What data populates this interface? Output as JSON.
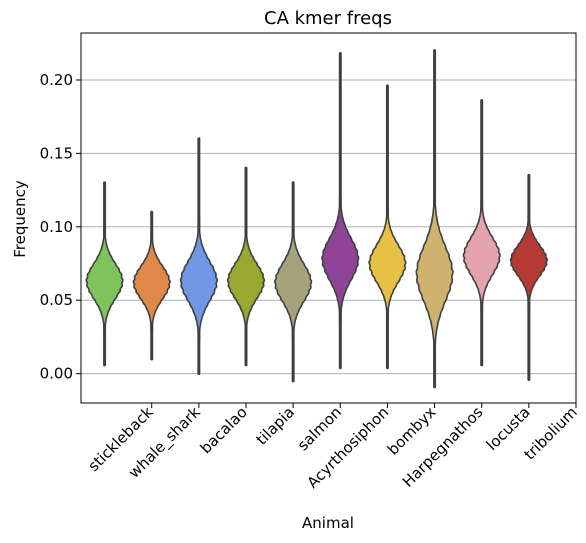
{
  "chart_data": {
    "type": "violin",
    "title": "CA kmer freqs",
    "xlabel": "Animal",
    "ylabel": "Frequency",
    "ylim": [
      -0.02,
      0.232
    ],
    "yticks": [
      "0.00",
      "0.05",
      "0.10",
      "0.15",
      "0.20"
    ],
    "ytick_values": [
      0.0,
      0.05,
      0.1,
      0.15,
      0.2
    ],
    "grid": "horizontal",
    "categories": [
      "stickleback",
      "whale_shark",
      "bacalao",
      "tilapia",
      "salmon",
      "Acyrthosiphon",
      "bombyx",
      "Harpegnathos",
      "locusta",
      "tribolium"
    ],
    "series": [
      {
        "name": "stickleback",
        "color": "#7ec45a",
        "min": 0.006,
        "max": 0.13,
        "median": 0.063,
        "q1": 0.055,
        "q3": 0.071
      },
      {
        "name": "whale_shark",
        "color": "#e0884a",
        "min": 0.01,
        "max": 0.11,
        "median": 0.062,
        "q1": 0.054,
        "q3": 0.069
      },
      {
        "name": "bacalao",
        "color": "#7198e6",
        "min": 0.0,
        "max": 0.16,
        "median": 0.063,
        "q1": 0.054,
        "q3": 0.072
      },
      {
        "name": "tilapia",
        "color": "#99a82e",
        "min": 0.006,
        "max": 0.14,
        "median": 0.063,
        "q1": 0.055,
        "q3": 0.071
      },
      {
        "name": "salmon",
        "color": "#a5a27c",
        "min": -0.005,
        "max": 0.13,
        "median": 0.062,
        "q1": 0.053,
        "q3": 0.07
      },
      {
        "name": "Acyrthosiphon",
        "color": "#8f4397",
        "min": 0.004,
        "max": 0.218,
        "median": 0.078,
        "q1": 0.068,
        "q3": 0.087
      },
      {
        "name": "bombyx",
        "color": "#e6c143",
        "min": 0.004,
        "max": 0.196,
        "median": 0.075,
        "q1": 0.066,
        "q3": 0.083
      },
      {
        "name": "Harpegnathos",
        "color": "#cfb26d",
        "min": -0.009,
        "max": 0.22,
        "median": 0.068,
        "q1": 0.055,
        "q3": 0.08
      },
      {
        "name": "locusta",
        "color": "#e5a3af",
        "min": 0.006,
        "max": 0.186,
        "median": 0.08,
        "q1": 0.072,
        "q3": 0.089
      },
      {
        "name": "tribolium",
        "color": "#b53a33",
        "min": -0.004,
        "max": 0.135,
        "median": 0.077,
        "q1": 0.07,
        "q3": 0.084
      }
    ]
  }
}
